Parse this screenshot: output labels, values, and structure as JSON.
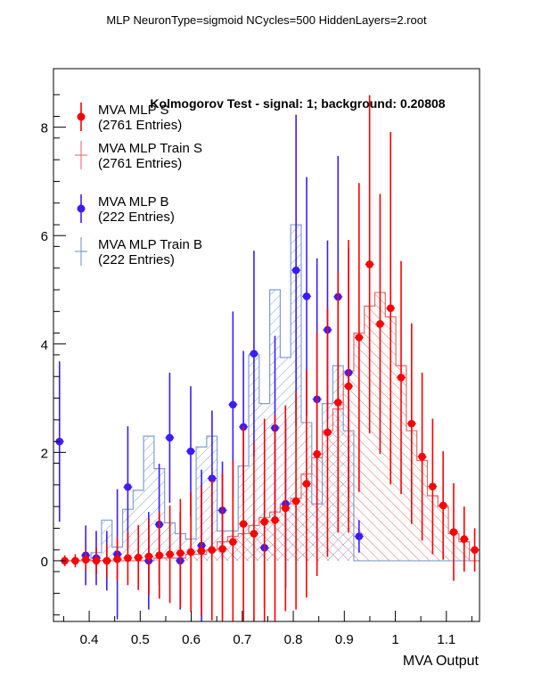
{
  "page_title": "MLP NeuronType=sigmoid NCycles=500 HiddenLayers=2.root",
  "chart_data": {
    "type": "histogram",
    "title": "Kolmogorov Test - signal: 1; background: 0.20808",
    "xlabel": "MVA Output",
    "ylabel": "",
    "xlim": [
      0.33,
      1.165
    ],
    "ylim": [
      -1.12,
      9.08
    ],
    "x_ticks": [
      {
        "v": 0.4,
        "label": "0.4"
      },
      {
        "v": 0.5,
        "label": "0.5"
      },
      {
        "v": 0.6,
        "label": "0.6"
      },
      {
        "v": 0.7,
        "label": "0.7"
      },
      {
        "v": 0.8,
        "label": "0.8"
      },
      {
        "v": 0.9,
        "label": "0.9"
      },
      {
        "v": 1.0,
        "label": "1"
      },
      {
        "v": 1.1,
        "label": "1.1"
      }
    ],
    "y_ticks": [
      {
        "v": 0,
        "label": "0"
      },
      {
        "v": 2,
        "label": "2"
      },
      {
        "v": 4,
        "label": "4"
      },
      {
        "v": 6,
        "label": "6"
      },
      {
        "v": 8,
        "label": "8"
      }
    ],
    "legend": [
      {
        "label": "MVA MLP S",
        "entries": "(2761 Entries)",
        "color": "#ff0000",
        "style": "marker"
      },
      {
        "label": "MVA MLP Train S",
        "entries": "(2761 Entries)",
        "color": "#e87878",
        "style": "line"
      },
      {
        "label": "MVA MLP B",
        "entries": "(222 Entries)",
        "color": "#3c1cff",
        "style": "marker"
      },
      {
        "label": "MVA MLP Train B",
        "entries": "(222 Entries)",
        "color": "#7f9fd0",
        "style": "line"
      }
    ],
    "bin_edges": [
      0.3418,
      0.3624,
      0.383,
      0.4036,
      0.4242,
      0.4448,
      0.4654,
      0.486,
      0.5066,
      0.5272,
      0.5478,
      0.5684,
      0.589,
      0.6096,
      0.6302,
      0.6508,
      0.6714,
      0.692,
      0.7126,
      0.7332,
      0.7538,
      0.7744,
      0.795,
      0.8156,
      0.8362,
      0.8568,
      0.8774,
      0.898,
      0.9186,
      0.9392,
      0.9598,
      0.9804,
      1.001,
      1.0216,
      1.0422,
      1.0628,
      1.0834,
      1.104,
      1.1246,
      1.1452,
      1.1658
    ],
    "series": [
      {
        "name": "MVA MLP Train B",
        "kind": "hist_hatched",
        "color": "#7f9fd0",
        "hatch": "forward",
        "values": [
          0,
          0,
          0,
          0.15,
          0.75,
          0.25,
          0.95,
          1.3,
          2.3,
          1.7,
          0.7,
          0.5,
          0.4,
          2.1,
          2.3,
          0.55,
          0.55,
          1.75,
          3.8,
          2.9,
          5.0,
          3.75,
          6.2,
          2.55,
          1.05,
          2.9,
          3.6,
          2.4,
          0,
          0,
          0,
          0,
          0,
          0,
          0,
          0,
          0,
          0,
          0,
          0
        ]
      },
      {
        "name": "MVA MLP Train S",
        "kind": "hist_hatched",
        "color": "#e06b6b",
        "hatch": "backward",
        "values": [
          0,
          0,
          0,
          0,
          0,
          0,
          0,
          0,
          0,
          0.05,
          0.05,
          0.05,
          0.12,
          0.12,
          0.2,
          0.35,
          0.45,
          0.5,
          0.65,
          0.8,
          0.9,
          1.05,
          1.15,
          1.6,
          1.9,
          2.4,
          2.8,
          3.5,
          4.2,
          4.7,
          4.95,
          4.5,
          3.6,
          2.4,
          1.85,
          1.2,
          1.0,
          0.5,
          0.35,
          0
        ]
      },
      {
        "name": "MVA MLP B",
        "kind": "points",
        "color": "#3c1cff",
        "x": [
          0.3418,
          0.3932,
          0.4138,
          0.4345,
          0.4551,
          0.4757,
          0.5166,
          0.5372,
          0.5578,
          0.5784,
          0.599,
          0.6202,
          0.6408,
          0.6611,
          0.6817,
          0.7023,
          0.7229,
          0.7435,
          0.7641,
          0.785,
          0.8054,
          0.8262,
          0.8465,
          0.8671,
          0.8877,
          0.9085,
          0.9289
        ],
        "y": [
          2.2,
          0.1,
          0.05,
          0.0,
          0.12,
          1.36,
          0.0,
          0.67,
          2.27,
          0.0,
          2.02,
          0.28,
          1.52,
          0.93,
          2.88,
          2.47,
          3.82,
          0.24,
          2.45,
          1.05,
          5.36,
          4.88,
          2.98,
          4.26,
          4.87,
          3.47,
          0.45
        ],
        "err": [
          1.48,
          0.55,
          0.5,
          0.55,
          1.2,
          1.12,
          0.9,
          1.12,
          1.2,
          0.9,
          1.2,
          1.4,
          1.25,
          0.9,
          1.72,
          1.4,
          1.9,
          1.1,
          1.7,
          1.55,
          2.87,
          2.2,
          2.6,
          1.65,
          2.6,
          2.3,
          0.3
        ]
      },
      {
        "name": "MVA MLP S",
        "kind": "points",
        "color": "#ff0000",
        "x": [
          0.3521,
          0.3727,
          0.3933,
          0.4139,
          0.4345,
          0.4551,
          0.4757,
          0.4963,
          0.5169,
          0.5375,
          0.5581,
          0.5787,
          0.5993,
          0.6199,
          0.6405,
          0.6611,
          0.6817,
          0.7023,
          0.7229,
          0.7435,
          0.7641,
          0.7847,
          0.8053,
          0.8259,
          0.8465,
          0.8671,
          0.8877,
          0.9083,
          0.9289,
          0.9495,
          0.9701,
          0.9907,
          1.0113,
          1.0319,
          1.0525,
          1.0731,
          1.0937,
          1.1143,
          1.1349,
          1.1555
        ],
        "y": [
          0.0,
          0.0,
          0.02,
          0.0,
          0.0,
          0.03,
          0.05,
          0.06,
          0.08,
          0.1,
          0.12,
          0.14,
          0.16,
          0.18,
          0.2,
          0.22,
          0.35,
          0.68,
          0.5,
          0.72,
          0.75,
          0.97,
          1.1,
          1.42,
          1.97,
          2.37,
          2.92,
          3.22,
          4.12,
          5.47,
          4.37,
          4.66,
          3.38,
          2.53,
          1.92,
          1.37,
          1.02,
          0.53,
          0.4,
          0.2
        ],
        "err": [
          0.1,
          0.12,
          0.2,
          0.25,
          0.3,
          0.4,
          0.5,
          0.6,
          0.7,
          0.8,
          0.9,
          1.0,
          1.1,
          1.2,
          1.3,
          1.4,
          1.5,
          1.8,
          1.7,
          1.9,
          1.95,
          1.9,
          2.0,
          2.1,
          2.25,
          2.3,
          2.4,
          2.7,
          2.85,
          3.12,
          2.4,
          3.25,
          2.15,
          1.85,
          1.55,
          1.25,
          1.0,
          0.9,
          0.6,
          0.4
        ]
      }
    ]
  }
}
